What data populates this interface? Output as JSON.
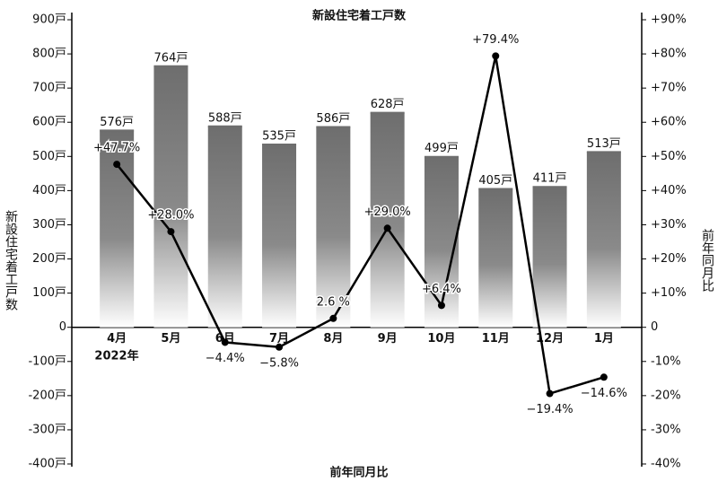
{
  "chart_data": {
    "type": "combo",
    "title": "新設住宅着工戸数",
    "y_label": "新設住宅着工戸数",
    "y2_label": "前年同月比",
    "bottom_label": "前年同月比",
    "year_note": "2022年",
    "categories": [
      "4月",
      "5月",
      "6月",
      "7月",
      "8月",
      "9月",
      "10月",
      "11月",
      "12月",
      "1月"
    ],
    "series": [
      {
        "type": "bar",
        "color": "#6e6e6e",
        "axis": "y",
        "values": [
          576,
          764,
          588,
          535,
          586,
          628,
          499,
          405,
          411,
          513
        ],
        "value_labels": [
          "576戸",
          "764戸",
          "588戸",
          "535戸",
          "586戸",
          "628戸",
          "499戸",
          "405戸",
          "411戸",
          "513戸"
        ]
      },
      {
        "type": "line",
        "color": "#000000",
        "axis": "y2",
        "values": [
          47.7,
          28.0,
          -4.4,
          -5.8,
          2.6,
          29.0,
          6.4,
          79.4,
          -19.4,
          -14.6
        ],
        "value_labels": [
          "+47.7%",
          "+28.0%",
          "−4.4%",
          "−5.8%",
          "2.6 %",
          "+29.0%",
          "+6.4%",
          "+79.4%",
          "−19.4%",
          "−14.6%"
        ]
      }
    ],
    "ylim": [
      -400,
      900
    ],
    "yticks": [
      {
        "value": 900,
        "label": "900戸"
      },
      {
        "value": 800,
        "label": "800戸"
      },
      {
        "value": 700,
        "label": "700戸"
      },
      {
        "value": 600,
        "label": "600戸"
      },
      {
        "value": 500,
        "label": "500戸"
      },
      {
        "value": 400,
        "label": "400戸"
      },
      {
        "value": 300,
        "label": "300戸"
      },
      {
        "value": 200,
        "label": "200戸"
      },
      {
        "value": 100,
        "label": "100戸"
      },
      0,
      {
        "value": -100,
        "label": "-100戸"
      },
      {
        "value": -200,
        "label": "-200戸"
      },
      {
        "value": -300,
        "label": "-300戸"
      },
      {
        "value": -400,
        "label": "-400戸"
      }
    ],
    "y2lim": [
      -40,
      90
    ],
    "y2ticks": [
      {
        "value": 90,
        "label": "+90%"
      },
      {
        "value": 80,
        "label": "+80%"
      },
      {
        "value": 70,
        "label": "+70%"
      },
      {
        "value": 60,
        "label": "+60%"
      },
      {
        "value": 50,
        "label": "+50%"
      },
      {
        "value": 40,
        "label": "+40%"
      },
      {
        "value": 30,
        "label": "+30%"
      },
      {
        "value": 20,
        "label": "+20%"
      },
      {
        "value": 10,
        "label": "+10%"
      },
      0,
      {
        "value": -10,
        "label": "-10%"
      },
      {
        "value": -20,
        "label": "-20%"
      },
      {
        "value": -30,
        "label": "-30%"
      },
      {
        "value": -40,
        "label": "-40%"
      }
    ]
  }
}
